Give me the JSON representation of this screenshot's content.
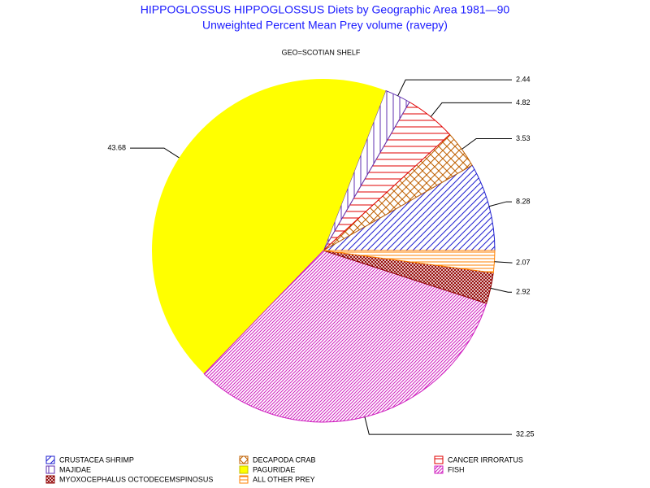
{
  "chart_data": {
    "type": "pie",
    "title": "HIPPOGLOSSUS HIPPOGLOSSUS Diets by Geographic Area 1981—90",
    "subtitle": "Unweighted Percent Mean Prey volume (ravepy)",
    "annotation": "GEO=SCOTIAN SHELF",
    "categories": [
      "CRUSTACEA SHRIMP",
      "DECAPODA CRAB",
      "CANCER IRRORATUS",
      "MAJIDAE",
      "PAGURIDAE",
      "FISH",
      "MYOXOCEPHALUS OCTODECEMSPINOSUS",
      "ALL OTHER PREY"
    ],
    "values": [
      8.28,
      3.53,
      4.82,
      2.44,
      43.68,
      32.25,
      2.92,
      2.07
    ],
    "colors": [
      "#2020d0",
      "#c06000",
      "#e00000",
      "#6030b0",
      "#ffff00",
      "#d020c0",
      "#900000",
      "#ff8000"
    ]
  }
}
